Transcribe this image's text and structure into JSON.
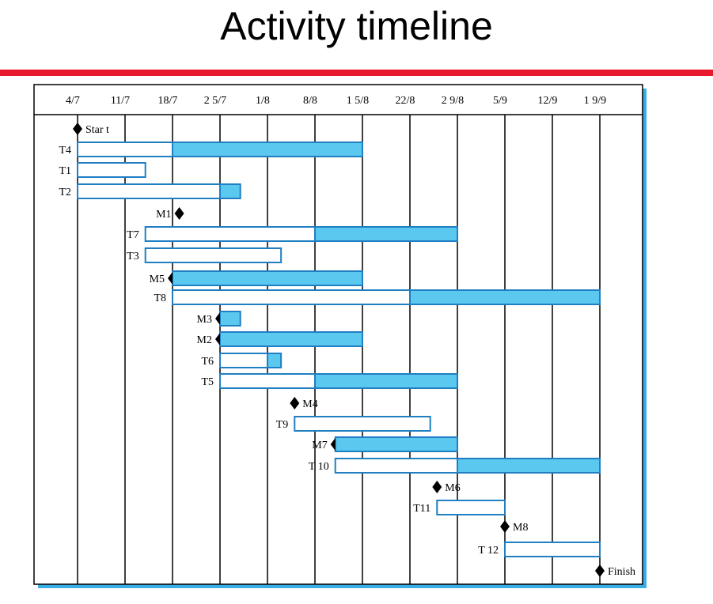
{
  "title": "Activity timeline",
  "colors": {
    "accent_rule": "#e8192c",
    "bar_fill": "#5bc8f0",
    "bar_stroke": "#1f7fc2",
    "shadow": "#39aee6"
  },
  "date_labels": [
    "4/7",
    "11/7",
    "18/7",
    "2 5/7",
    "1/8",
    "8/8",
    "1 5/8",
    "22/8",
    "2 9/8",
    "5/9",
    "12/9",
    "1 9/9"
  ],
  "milestones": [
    {
      "label": "Star t",
      "date": "4/7",
      "label_side": "right"
    },
    {
      "label": "M1",
      "date": "19/7",
      "label_side": "left"
    },
    {
      "label": "M5",
      "date": "18/7",
      "label_side": "left"
    },
    {
      "label": "M3",
      "date": "25/7",
      "label_side": "left"
    },
    {
      "label": "M2",
      "date": "25/7",
      "label_side": "left"
    },
    {
      "label": "M4",
      "date": "5/8",
      "label_side": "right"
    },
    {
      "label": "M7",
      "date": "11/8",
      "label_side": "left"
    },
    {
      "label": "M6",
      "date": "26/8",
      "label_side": "right"
    },
    {
      "label": "M8",
      "date": "5/9",
      "label_side": "right"
    },
    {
      "label": "Finish",
      "date": "19/9",
      "label_side": "right"
    }
  ],
  "tasks": [
    {
      "label": "T4",
      "start": "4/7",
      "end": "18/7",
      "slack_end": "15/8"
    },
    {
      "label": "T1",
      "start": "4/7",
      "end": "14/7"
    },
    {
      "label": "T2",
      "start": "4/7",
      "end": "25/7",
      "slack_end": "28/7"
    },
    {
      "label": "T7",
      "start": "14/7",
      "end": "8/8",
      "slack_end": "29/8"
    },
    {
      "label": "T3",
      "start": "14/7",
      "end": "3/8"
    },
    {
      "label": "T8",
      "start": "18/7",
      "end": "22/8",
      "slack_end": "19/9"
    },
    {
      "label": "T6",
      "start": "25/7",
      "end": "1/8",
      "slack_end": "3/8"
    },
    {
      "label": "T5",
      "start": "25/7",
      "end": "8/8",
      "slack_end": "29/8"
    },
    {
      "label": "T9",
      "start": "5/8",
      "end": "25/8"
    },
    {
      "label": "T 10",
      "start": "11/8",
      "end": "29/8",
      "slack_end": "19/9"
    },
    {
      "label": "T11",
      "start": "26/8",
      "end": "5/9"
    },
    {
      "label": "T 12",
      "start": "5/9",
      "end": "19/9"
    }
  ],
  "slack_only_bars": [
    {
      "start": "18/7",
      "end": "15/8"
    },
    {
      "start": "25/7",
      "end": "28/7"
    },
    {
      "start": "25/7",
      "end": "15/8"
    },
    {
      "start": "11/8",
      "end": "29/8"
    }
  ]
}
